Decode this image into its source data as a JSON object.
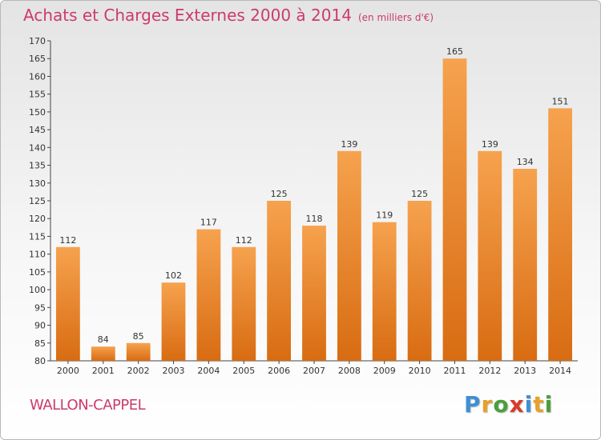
{
  "header": {
    "title": "Achats et Charges Externes 2000 à 2014",
    "subtitle": "(en milliers d'€)"
  },
  "footer": {
    "place": "WALLON-CAPPEL",
    "logo_letters": [
      "P",
      "r",
      "o",
      "x",
      "i",
      "t",
      "i"
    ],
    "logo_colors": [
      "#3f8fd2",
      "#e7a02a",
      "#4a9f3c",
      "#d93a2b",
      "#3f8fd2",
      "#e7a02a",
      "#4a9f3c"
    ]
  },
  "colors": {
    "bar_light": "#f6a24e",
    "bar_dark": "#d86c12",
    "title": "#cc3a6e"
  },
  "chart_data": {
    "type": "bar",
    "categories": [
      "2000",
      "2001",
      "2002",
      "2003",
      "2004",
      "2005",
      "2006",
      "2007",
      "2008",
      "2009",
      "2010",
      "2011",
      "2012",
      "2013",
      "2014"
    ],
    "values": [
      112,
      84,
      85,
      102,
      117,
      112,
      125,
      118,
      139,
      119,
      125,
      165,
      139,
      134,
      151
    ],
    "title": "Achats et Charges Externes 2000 à 2014",
    "ylim": [
      80,
      170
    ],
    "yticks": [
      80,
      85,
      90,
      95,
      100,
      105,
      110,
      115,
      120,
      125,
      130,
      135,
      140,
      145,
      150,
      155,
      160,
      165,
      170
    ],
    "grid": false,
    "legend": "none"
  }
}
